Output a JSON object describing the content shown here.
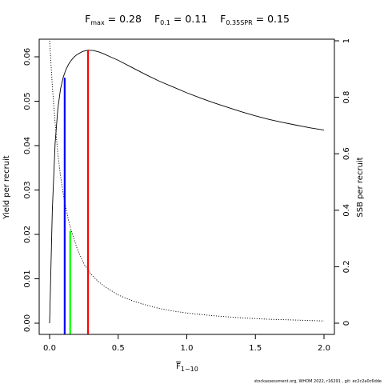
{
  "chart_data": {
    "type": "line",
    "title_items": [
      {
        "main": "F",
        "sub": "max",
        "eq": " = 0.28"
      },
      {
        "main": "F",
        "sub": "0.1",
        "eq": " = 0.11"
      },
      {
        "main": "F",
        "sub": "0.35SPR",
        "eq": " = 0.15"
      }
    ],
    "xlabel": {
      "main": "F",
      "sub": "1−10"
    },
    "ylabel_left": "Yield per recruit",
    "ylabel_right": "SSB per recruit",
    "xlim": [
      0,
      2.0
    ],
    "ylim_left": [
      0,
      0.062
    ],
    "ylim_right": [
      0,
      1
    ],
    "x_ticks": [
      0,
      0.5,
      1,
      1.5,
      2
    ],
    "x_tick_labels": [
      "0.0",
      "0.5",
      "1.0",
      "1.5",
      "2.0"
    ],
    "y_left_ticks": [
      0,
      0.01,
      0.02,
      0.03,
      0.04,
      0.05,
      0.06
    ],
    "y_left_tick_labels": [
      "0.00",
      "0.01",
      "0.02",
      "0.03",
      "0.04",
      "0.05",
      "0.06"
    ],
    "y_right_ticks": [
      0,
      0.2,
      0.4,
      0.6,
      0.8,
      1
    ],
    "y_right_tick_labels": [
      "0",
      "0.2",
      "0.4",
      "0.6",
      "0.8",
      "1"
    ],
    "series": [
      {
        "label": "yield",
        "axis": "left",
        "style": "solid",
        "color": "#000000",
        "x": [
          0,
          0.02,
          0.04,
          0.06,
          0.08,
          0.1,
          0.12,
          0.14,
          0.16,
          0.18,
          0.2,
          0.24,
          0.28,
          0.32,
          0.36,
          0.4,
          0.45,
          0.5,
          0.6,
          0.7,
          0.8,
          0.9,
          1.0,
          1.1,
          1.2,
          1.3,
          1.4,
          1.5,
          1.6,
          1.7,
          1.8,
          1.9,
          2.0
        ],
        "y": [
          0.0,
          0.0255,
          0.0405,
          0.0483,
          0.0528,
          0.0555,
          0.0572,
          0.0584,
          0.0593,
          0.06,
          0.0605,
          0.0612,
          0.0615,
          0.0614,
          0.0611,
          0.0606,
          0.0599,
          0.0592,
          0.0576,
          0.056,
          0.0545,
          0.0532,
          0.0519,
          0.0507,
          0.0496,
          0.0486,
          0.0476,
          0.0467,
          0.0459,
          0.0452,
          0.0446,
          0.044,
          0.0435
        ]
      },
      {
        "label": "ssb",
        "axis": "right",
        "style": "dotted",
        "color": "#000000",
        "x": [
          0,
          0.02,
          0.04,
          0.06,
          0.08,
          0.1,
          0.12,
          0.14,
          0.16,
          0.18,
          0.2,
          0.25,
          0.3,
          0.35,
          0.4,
          0.5,
          0.6,
          0.7,
          0.8,
          0.9,
          1.0,
          1.2,
          1.4,
          1.6,
          1.8,
          2.0
        ],
        "y": [
          1.0,
          0.84,
          0.71,
          0.6,
          0.52,
          0.455,
          0.405,
          0.36,
          0.325,
          0.295,
          0.265,
          0.21,
          0.175,
          0.15,
          0.13,
          0.1,
          0.08,
          0.065,
          0.052,
          0.043,
          0.036,
          0.026,
          0.019,
          0.014,
          0.011,
          0.008
        ]
      }
    ],
    "reference_lines": [
      {
        "label": "F0.1",
        "x": 0.11,
        "y_top": 0.0553,
        "color": "#0000ff"
      },
      {
        "label": "F0.35SPR",
        "x": 0.15,
        "y_top": 0.0208,
        "color": "#00ff00"
      },
      {
        "label": "Fmax",
        "x": 0.28,
        "y_top": 0.0615,
        "color": "#ff0000"
      }
    ],
    "grid": false,
    "legend": "none"
  },
  "footer": "stockassessment.org, WHOM 2022, r16291 , git: ec2c2a0c6dde"
}
